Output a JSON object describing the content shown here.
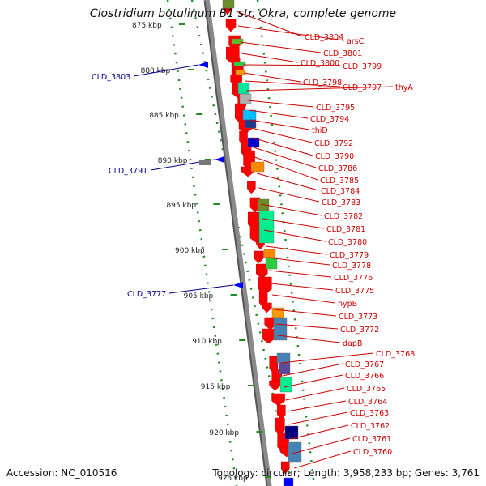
{
  "title": "Clostridium botulinum B1 str. Okra, complete genome",
  "accession": "Accession: NC_010516",
  "summary": "Topology: circular; Length: 3,958,233 bp; Genes: 3,761",
  "colors": {
    "backbone": "#8a8a8a",
    "cds_arrow": "#ff0000",
    "label_right": "#cc0000",
    "label_left": "#00008b",
    "tick": "#228b22",
    "marker": "#0000ff"
  },
  "scale_labels": [
    "875 kbp",
    "880 kbp",
    "885 kbp",
    "890 kbp",
    "895 kbp",
    "900 kbp",
    "905 kbp",
    "910 kbp",
    "915 kbp",
    "920 kbp",
    "925 kbp"
  ],
  "right_labels": [
    "CLD_3804",
    "arsC",
    "CLD_3801",
    "CLD_3800",
    "CLD_3799",
    "CLD_3798",
    "CLD_3797",
    "thyA",
    "CLD_3795",
    "CLD_3794",
    "thiD",
    "CLD_3792",
    "CLD_3790",
    "CLD_3786",
    "CLD_3785",
    "CLD_3784",
    "CLD_3783",
    "CLD_3782",
    "CLD_3781",
    "CLD_3780",
    "CLD_3779",
    "CLD_3778",
    "CLD_3776",
    "CLD_3775",
    "hypB",
    "CLD_3773",
    "CLD_3772",
    "dapB",
    "CLD_3768",
    "CLD_3767",
    "CLD_3766",
    "CLD_3765",
    "CLD_3764",
    "CLD_3763",
    "CLD_3762",
    "CLD_3761",
    "CLD_3760"
  ],
  "left_labels": [
    "CLD_3803",
    "CLD_3791",
    "CLD_3777"
  ]
}
